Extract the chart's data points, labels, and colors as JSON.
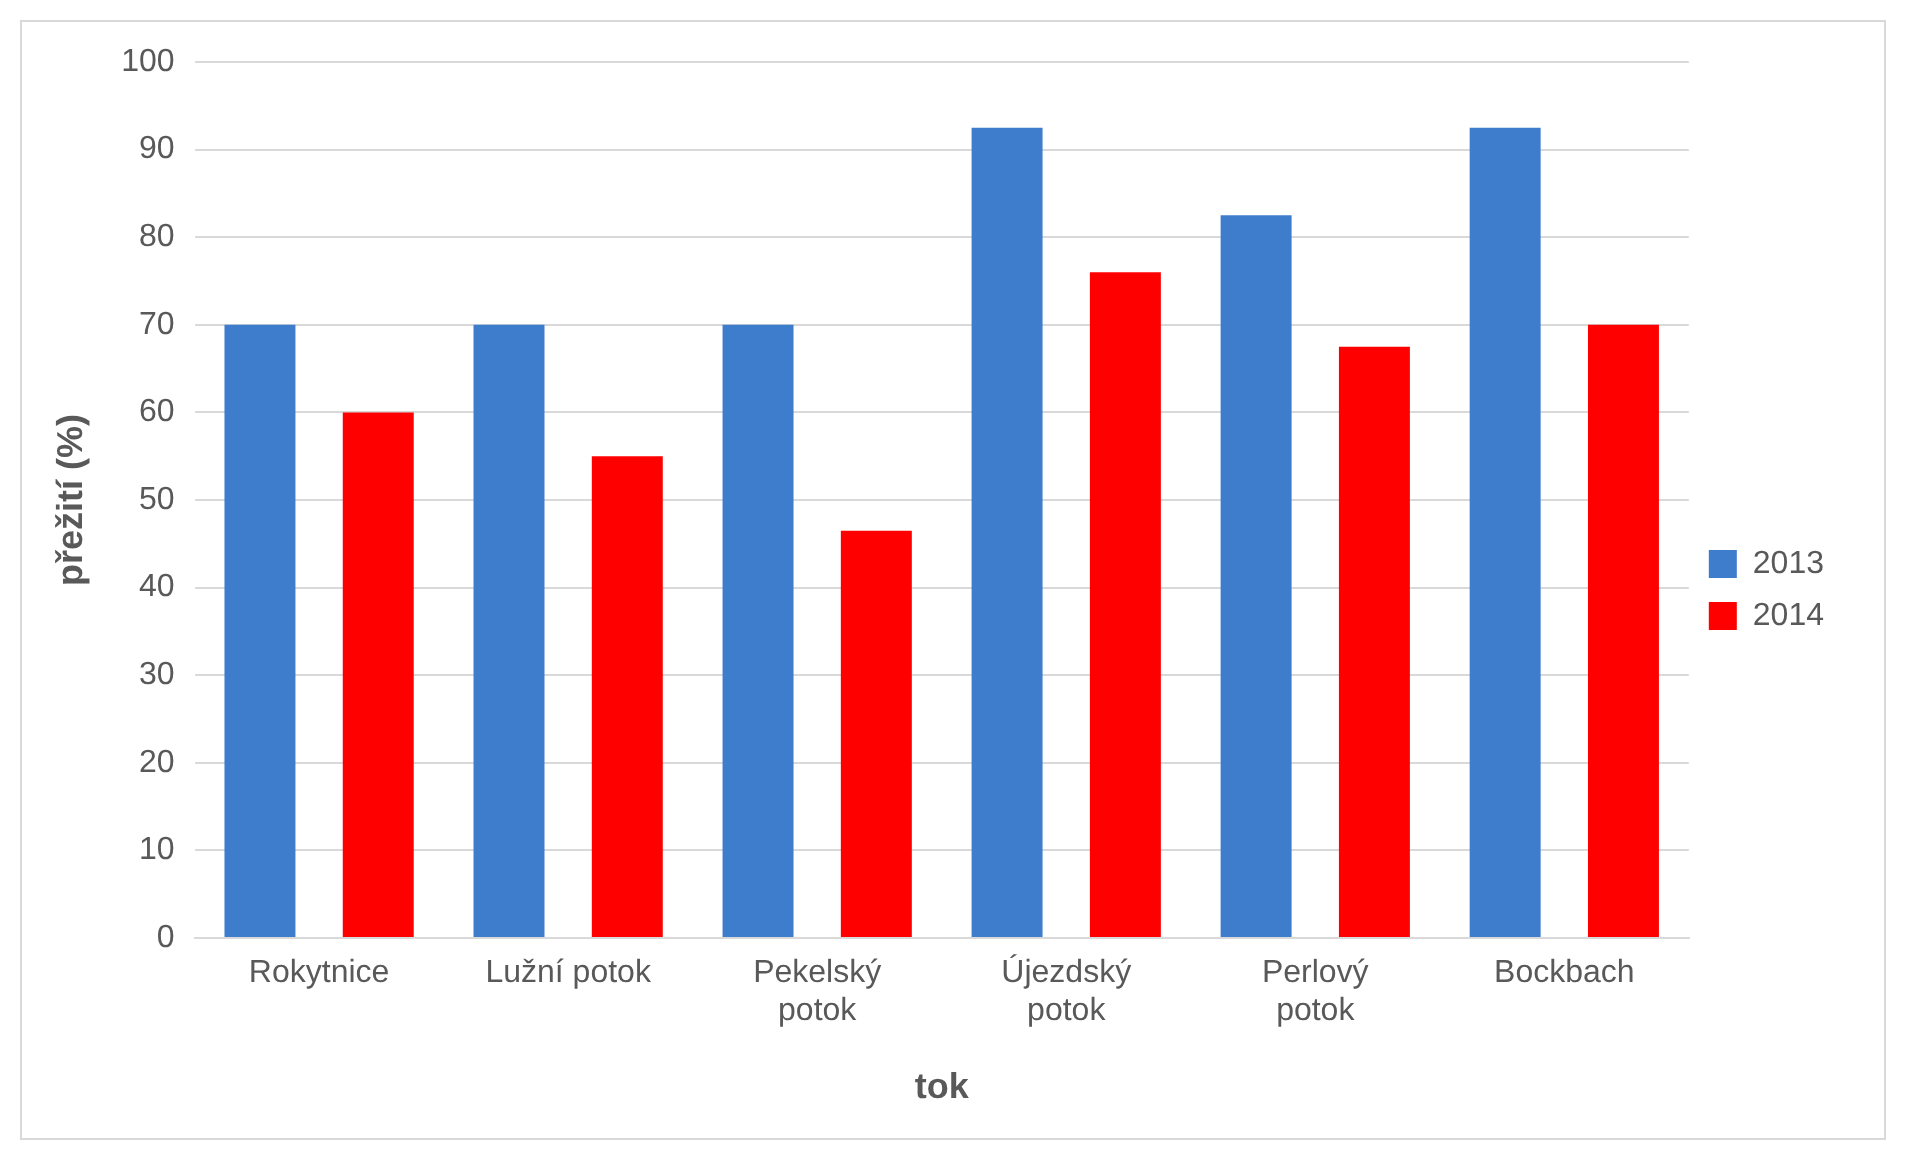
{
  "chart_data": {
    "type": "bar",
    "xlabel": "tok",
    "ylabel": "přežití (%)",
    "categories": [
      "Rokytnice",
      "Lužní potok",
      "Pekelský potok",
      "Újezdský potok",
      "Perlový potok",
      "Bockbach"
    ],
    "series": [
      {
        "name": "2013",
        "color": "#3e7ccc",
        "values": [
          70,
          70,
          70,
          92.5,
          82.5,
          92.5
        ]
      },
      {
        "name": "2014",
        "color": "#ff0000",
        "values": [
          60,
          55,
          46.5,
          76,
          67.5,
          70
        ]
      }
    ],
    "ylim": [
      0,
      100
    ],
    "yticks": [
      0,
      10,
      20,
      30,
      40,
      50,
      60,
      70,
      80,
      90,
      100
    ],
    "grid": "y",
    "legend": "right"
  }
}
